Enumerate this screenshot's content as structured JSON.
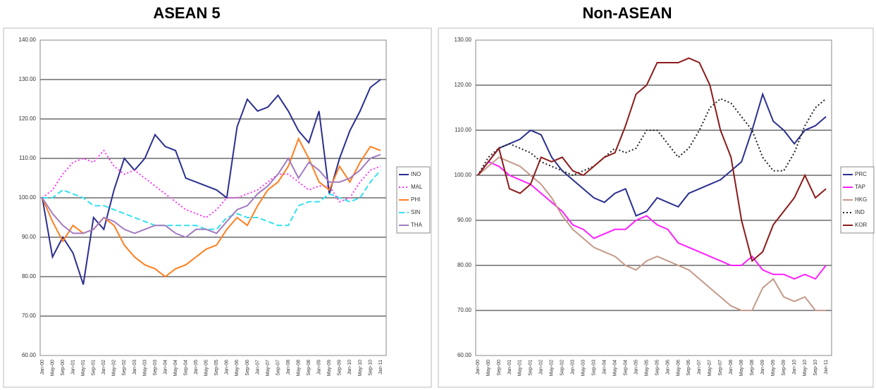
{
  "chart_data": [
    {
      "type": "line",
      "title": "ASEAN 5",
      "categories": [
        "Jan-00",
        "May-00",
        "Sep-00",
        "Jan-01",
        "May-01",
        "Sep-01",
        "Jan-02",
        "May-02",
        "Sep-02",
        "Jan-03",
        "May-03",
        "Sep-03",
        "Jan-04",
        "May-04",
        "Sep-04",
        "Jan-05",
        "May-05",
        "Sep-05",
        "Jan-06",
        "May-06",
        "Sep-06",
        "Jan-07",
        "May-07",
        "Sep-07",
        "Jan-08",
        "May-08",
        "Sep-08",
        "Jan-09",
        "May-09",
        "Sep-09",
        "Jan-10",
        "May-10",
        "Sep-10",
        "Jan-11"
      ],
      "ylim": [
        60,
        140
      ],
      "yticks": [
        {
          "value": 60,
          "label": "60.00"
        },
        {
          "value": 70,
          "label": "70.00"
        },
        {
          "value": 80,
          "label": "80.00"
        },
        {
          "value": 90,
          "label": "90.00"
        },
        {
          "value": 100,
          "label": "100.00"
        },
        {
          "value": 110,
          "label": "110.00"
        },
        {
          "value": 120,
          "label": "120.00"
        },
        {
          "value": 130,
          "label": "130.00"
        },
        {
          "value": 140,
          "label": "140.00"
        }
      ],
      "grid": true,
      "series": [
        {
          "name": "INO",
          "color": "#2b2f8f",
          "style": "solid",
          "values": [
            100,
            85,
            90,
            86,
            78,
            95,
            92,
            102,
            110,
            107,
            110,
            116,
            113,
            112,
            105,
            104,
            103,
            102,
            100,
            118,
            125,
            122,
            123,
            126,
            122,
            117,
            114,
            122,
            101,
            110,
            117,
            122,
            128,
            130
          ]
        },
        {
          "name": "MAL",
          "color": "#ff33ff",
          "style": "dotted",
          "values": [
            100,
            102,
            106,
            109,
            110,
            109,
            112,
            108,
            106,
            107,
            105,
            103,
            101,
            99,
            97,
            96,
            95,
            97,
            100,
            100,
            101,
            102,
            104,
            106,
            106,
            104,
            102,
            103,
            103,
            99,
            100,
            104,
            107,
            108
          ]
        },
        {
          "name": "PHI",
          "color": "#ff7f1f",
          "style": "solid",
          "values": [
            100,
            94,
            89,
            93,
            91,
            92,
            95,
            93,
            88,
            85,
            83,
            82,
            80,
            82,
            83,
            85,
            87,
            88,
            92,
            95,
            93,
            98,
            102,
            104,
            108,
            115,
            110,
            104,
            102,
            108,
            104,
            109,
            113,
            112
          ]
        },
        {
          "name": "SIN",
          "color": "#33e0f0",
          "style": "dashed",
          "values": [
            100,
            100,
            102,
            101,
            100,
            98,
            98,
            97,
            96,
            95,
            94,
            93,
            93,
            93,
            93,
            93,
            92,
            92,
            95,
            96,
            95,
            95,
            94,
            93,
            93,
            98,
            99,
            99,
            101,
            100,
            99,
            100,
            104,
            107
          ]
        },
        {
          "name": "THA",
          "color": "#a27bc0",
          "style": "solid",
          "values": [
            100,
            96,
            93,
            91,
            91,
            92,
            95,
            94,
            92,
            91,
            92,
            93,
            93,
            91,
            90,
            92,
            92,
            91,
            94,
            97,
            98,
            101,
            103,
            106,
            110,
            105,
            109,
            107,
            104,
            104,
            105,
            107,
            110,
            111
          ]
        }
      ]
    },
    {
      "type": "line",
      "title": "Non-ASEAN",
      "categories": [
        "Jan-00",
        "May-00",
        "Sep-00",
        "Jan-01",
        "May-01",
        "Sep-01",
        "Jan-02",
        "May-02",
        "Sep-02",
        "Jan-03",
        "May-03",
        "Sep-03",
        "Jan-04",
        "May-04",
        "Sep-04",
        "Jan-05",
        "May-05",
        "Sep-05",
        "Jan-06",
        "May-06",
        "Sep-06",
        "Jan-07",
        "May-07",
        "Sep-07",
        "Jan-08",
        "May-08",
        "Sep-08",
        "Jan-09",
        "May-09",
        "Sep-09",
        "Jan-10",
        "May-10",
        "Sep-10",
        "Jan-11"
      ],
      "ylim": [
        60,
        130
      ],
      "yticks": [
        {
          "value": 60,
          "label": "60.00"
        },
        {
          "value": 70,
          "label": "70.00"
        },
        {
          "value": 80,
          "label": "80.00"
        },
        {
          "value": 90,
          "label": "90.00"
        },
        {
          "value": 100,
          "label": "100.00"
        },
        {
          "value": 110,
          "label": "110.00"
        },
        {
          "value": 120,
          "label": "120.00"
        },
        {
          "value": 130,
          "label": "130.00"
        }
      ],
      "grid": true,
      "series": [
        {
          "name": "PRC",
          "color": "#2b2f8f",
          "style": "solid",
          "values": [
            100,
            103,
            106,
            107,
            108,
            110,
            109,
            104,
            101,
            99,
            97,
            95,
            94,
            96,
            97,
            91,
            92,
            95,
            94,
            93,
            96,
            97,
            98,
            99,
            101,
            103,
            110,
            118,
            112,
            110,
            107,
            110,
            111,
            113
          ]
        },
        {
          "name": "TAP",
          "color": "#ff1fff",
          "style": "solid",
          "values": [
            100,
            103,
            102,
            100,
            99,
            98,
            96,
            94,
            92,
            89,
            88,
            86,
            87,
            88,
            88,
            90,
            91,
            89,
            88,
            85,
            84,
            83,
            82,
            81,
            80,
            80,
            82,
            79,
            78,
            78,
            77,
            78,
            77,
            80
          ]
        },
        {
          "name": "HKG",
          "color": "#c49a8a",
          "style": "solid",
          "values": [
            100,
            102,
            104,
            103,
            102,
            100,
            98,
            95,
            91,
            88,
            86,
            84,
            83,
            82,
            80,
            79,
            81,
            82,
            81,
            80,
            79,
            77,
            75,
            73,
            71,
            70,
            70,
            75,
            77,
            73,
            72,
            73,
            70,
            70
          ]
        },
        {
          "name": "IND",
          "color": "#222222",
          "style": "dotted",
          "values": [
            100,
            104,
            106,
            107,
            106,
            105,
            103,
            102,
            101,
            100,
            101,
            102,
            104,
            106,
            105,
            106,
            110,
            110,
            107,
            104,
            106,
            110,
            115,
            117,
            116,
            113,
            110,
            104,
            101,
            101,
            105,
            111,
            115,
            117
          ]
        },
        {
          "name": "KOR",
          "color": "#8b1a1a",
          "style": "solid",
          "values": [
            100,
            103,
            106,
            97,
            96,
            98,
            104,
            103,
            104,
            101,
            100,
            102,
            104,
            105,
            111,
            118,
            120,
            125,
            125,
            125,
            126,
            125,
            120,
            110,
            104,
            90,
            81,
            83,
            89,
            92,
            95,
            100,
            95,
            97
          ]
        }
      ]
    }
  ]
}
